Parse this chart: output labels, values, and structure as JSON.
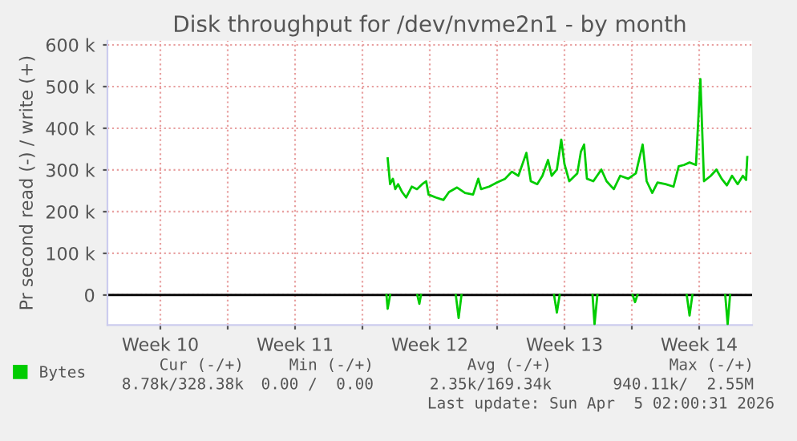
{
  "chart_data": {
    "type": "line",
    "title": "Disk throughput for /dev/nvme2n1 - by month",
    "ylabel": "Pr second read (-) / write (+)",
    "series": [
      {
        "name": "Bytes",
        "color": "#00cc00",
        "x": [
          "2026-03-17T07:30",
          "2026-03-17T10:30",
          "2026-03-17T14:00",
          "2026-03-17T17:00",
          "2026-03-17T20:30",
          "2026-03-18T01:30",
          "2026-03-18T06:30",
          "2026-03-18T13:30",
          "2026-03-18T20:00",
          "2026-03-19T02:30",
          "2026-03-19T07:30",
          "2026-03-19T10:30",
          "2026-03-19T19:30",
          "2026-03-20T05:00",
          "2026-03-20T12:00",
          "2026-03-20T22:00",
          "2026-03-21T08:00",
          "2026-03-21T18:00",
          "2026-03-22T00:30",
          "2026-03-22T04:00",
          "2026-03-22T14:00",
          "2026-03-23T00:00",
          "2026-03-23T10:00",
          "2026-03-23T18:30",
          "2026-03-24T02:30",
          "2026-03-24T12:30",
          "2026-03-24T18:00",
          "2026-03-25T02:00",
          "2026-03-25T08:30",
          "2026-03-25T15:30",
          "2026-03-25T20:00",
          "2026-03-26T02:30",
          "2026-03-26T08:00",
          "2026-03-26T12:00",
          "2026-03-26T18:00",
          "2026-03-27T04:00",
          "2026-03-27T08:30",
          "2026-03-27T12:30",
          "2026-03-27T16:00",
          "2026-03-28T00:00",
          "2026-03-28T10:00",
          "2026-03-28T16:30",
          "2026-03-29T01:30",
          "2026-03-29T09:30",
          "2026-03-29T19:30",
          "2026-03-30T05:00",
          "2026-03-30T13:30",
          "2026-03-30T18:30",
          "2026-03-31T01:30",
          "2026-03-31T08:00",
          "2026-03-31T18:00",
          "2026-04-01T04:00",
          "2026-04-01T10:30",
          "2026-04-01T17:00",
          "2026-04-02T00:00",
          "2026-04-02T08:00",
          "2026-04-02T13:30",
          "2026-04-02T18:00",
          "2026-04-03T02:30",
          "2026-04-03T09:30",
          "2026-04-03T16:00",
          "2026-04-03T22:30",
          "2026-04-04T05:00",
          "2026-04-04T12:00",
          "2026-04-04T18:30",
          "2026-04-04T22:30",
          "2026-04-05T00:00"
        ],
        "values": [
          328000,
          266000,
          279000,
          254000,
          266000,
          247000,
          234000,
          260000,
          254000,
          266000,
          273000,
          241000,
          234000,
          228000,
          247000,
          258000,
          245000,
          241000,
          279000,
          254000,
          260000,
          270000,
          279000,
          296000,
          286000,
          341000,
          273000,
          266000,
          286000,
          324000,
          286000,
          301000,
          373000,
          314000,
          273000,
          292000,
          344000,
          361000,
          279000,
          273000,
          301000,
          273000,
          254000,
          286000,
          279000,
          292000,
          361000,
          273000,
          245000,
          270000,
          266000,
          260000,
          309000,
          312000,
          318000,
          312000,
          518000,
          273000,
          286000,
          301000,
          279000,
          263000,
          286000,
          266000,
          286000,
          276000,
          331000
        ]
      },
      {
        "color": "#00cc00",
        "x": [
          "2026-03-17T06:00",
          "2026-03-17T07:30",
          "2026-03-17T10:30"
        ],
        "values": [
          0,
          -33000,
          0
        ]
      },
      {
        "color": "#00cc00",
        "x": [
          "2026-03-18T20:30",
          "2026-03-18T23:00",
          "2026-03-19T01:00"
        ],
        "values": [
          0,
          -21000,
          0
        ]
      },
      {
        "color": "#00cc00",
        "x": [
          "2026-03-20T20:30",
          "2026-03-21T00:00",
          "2026-03-21T03:30"
        ],
        "values": [
          0,
          -55000,
          0
        ]
      },
      {
        "color": "#00cc00",
        "x": [
          "2026-03-25T23:00",
          "2026-03-26T02:30",
          "2026-03-26T06:00"
        ],
        "values": [
          0,
          -42000,
          0
        ]
      },
      {
        "color": "#00cc00",
        "x": [
          "2026-03-27T23:00",
          "2026-03-28T01:30",
          "2026-03-28T05:00"
        ],
        "values": [
          0,
          -70000,
          0
        ]
      },
      {
        "color": "#00cc00",
        "x": [
          "2026-03-30T01:00",
          "2026-03-30T04:00",
          "2026-03-30T07:00"
        ],
        "values": [
          0,
          -17000,
          0
        ]
      },
      {
        "color": "#00cc00",
        "x": [
          "2026-04-01T20:30",
          "2026-04-02T00:00",
          "2026-04-02T03:30"
        ],
        "values": [
          0,
          -49000,
          0
        ]
      },
      {
        "color": "#00cc00",
        "x": [
          "2026-04-03T20:30",
          "2026-04-03T23:30",
          "2026-04-04T02:30"
        ],
        "values": [
          0,
          -70000,
          0
        ]
      }
    ],
    "xlim": [
      "2026-03-02T18:00",
      "2026-04-05T06:00"
    ],
    "xticks": [
      {
        "value": "2026-03-05T12:00",
        "label": "Week 10"
      },
      {
        "value": "2026-03-09",
        "label": null
      },
      {
        "value": "2026-03-12T12:00",
        "label": "Week 11"
      },
      {
        "value": "2026-03-16",
        "label": null
      },
      {
        "value": "2026-03-19T12:00",
        "label": "Week 12"
      },
      {
        "value": "2026-03-23",
        "label": null
      },
      {
        "value": "2026-03-26T12:00",
        "label": "Week 13"
      },
      {
        "value": "2026-03-30",
        "label": null
      },
      {
        "value": "2026-04-02T12:00",
        "label": "Week 14"
      }
    ],
    "ylim": [
      -72000,
      610000
    ],
    "yticks": [
      {
        "value": 0,
        "label": "0"
      },
      {
        "value": 100000,
        "label": "100 k"
      },
      {
        "value": 200000,
        "label": "200 k"
      },
      {
        "value": 300000,
        "label": "300 k"
      },
      {
        "value": 400000,
        "label": "400 k"
      },
      {
        "value": 500000,
        "label": "500 k"
      },
      {
        "value": 600000,
        "label": "600 k"
      }
    ],
    "ref_lines": [
      {
        "axis": "y",
        "value": 0,
        "color": "#000000"
      }
    ],
    "grid": true,
    "legend": "bottom left",
    "marker": "none",
    "line_style": "solid",
    "annotations": [
      "Cur (-/+)",
      "Min (-/+)",
      "Avg (-/+)",
      "Max (-/+)",
      "8.78k/328.38k",
      "0.00 /  0.00",
      "2.35k/169.34k",
      "940.11k/  2.55M",
      "Last update: Sun Apr  5 02:00:31 2026"
    ]
  }
}
